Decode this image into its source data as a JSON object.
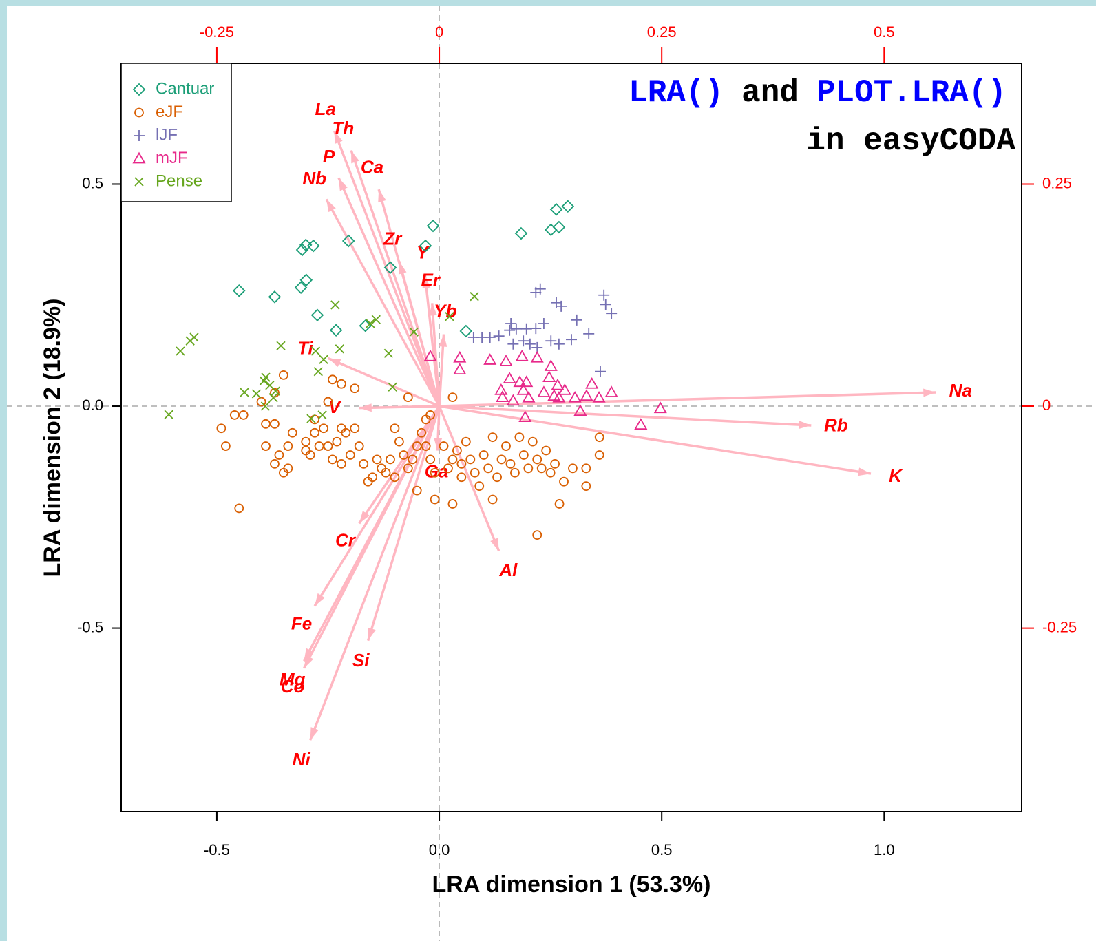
{
  "chart_data": {
    "type": "scatter",
    "title": [
      "LRA()",
      "and",
      "PLOT.LRA()"
    ],
    "subtitle": "in easyCODA",
    "xlabel": "LRA dimension 1 (53.3%)",
    "ylabel": "LRA dimension 2 (18.9%)",
    "xlim": [
      -0.715,
      1.309
    ],
    "ylim": [
      -0.913,
      0.772
    ],
    "xticks": [
      -0.5,
      {
        "value": 0,
        "label": "0.0"
      },
      0.5,
      {
        "value": 1,
        "label": "1.0"
      }
    ],
    "yticks": [
      -0.5,
      {
        "value": 0,
        "label": "0.0"
      },
      0.5
    ],
    "x2lim": [
      -0.3575,
      0.6545
    ],
    "y2lim": [
      -0.4565,
      0.386
    ],
    "x2ticks": [
      -0.25,
      0,
      0.25,
      0.5
    ],
    "y2ticks": [
      -0.25,
      0,
      0.25
    ],
    "second_axis_color": "#ff0000",
    "series": [
      {
        "name": "Cantuar",
        "color": "#1b9e77",
        "marker": "diamond",
        "x": [
          -0.45,
          -0.37,
          -0.311,
          -0.299,
          -0.308,
          -0.3,
          -0.283,
          -0.274,
          -0.232,
          -0.204,
          -0.166,
          -0.11,
          -0.031,
          -0.014,
          0.06,
          0.184,
          0.251,
          0.269,
          0.263,
          0.289
        ],
        "y": [
          0.26,
          0.246,
          0.267,
          0.284,
          0.352,
          0.363,
          0.361,
          0.205,
          0.171,
          0.372,
          0.181,
          0.312,
          0.361,
          0.406,
          0.169,
          0.389,
          0.397,
          0.403,
          0.443,
          0.45
        ]
      },
      {
        "name": "eJF",
        "color": "#d95f02",
        "marker": "circle",
        "x": [
          -0.49,
          -0.48,
          -0.46,
          -0.44,
          -0.45,
          -0.39,
          -0.37,
          -0.37,
          -0.36,
          -0.35,
          -0.34,
          -0.33,
          -0.3,
          -0.29,
          -0.28,
          -0.27,
          -0.26,
          -0.25,
          -0.24,
          -0.23,
          -0.22,
          -0.21,
          -0.19,
          -0.18,
          -0.17,
          -0.15,
          -0.14,
          -0.13,
          -0.12,
          -0.11,
          -0.1,
          -0.09,
          -0.08,
          -0.07,
          -0.06,
          -0.05,
          -0.05,
          -0.04,
          -0.03,
          -0.03,
          -0.02,
          -0.02,
          -0.01,
          -0.01,
          0.01,
          0.02,
          0.03,
          0.03,
          0.04,
          0.05,
          0.05,
          0.06,
          0.07,
          0.08,
          0.09,
          0.1,
          0.11,
          0.12,
          0.12,
          0.13,
          0.14,
          0.15,
          0.16,
          0.17,
          0.18,
          0.19,
          0.2,
          0.21,
          0.22,
          0.22,
          0.23,
          0.24,
          0.25,
          0.26,
          0.27,
          0.28,
          0.3,
          0.33,
          0.33,
          0.36,
          0.36,
          -0.34,
          -0.3,
          -0.28,
          -0.22,
          -0.2,
          -0.16,
          -0.1,
          0.03,
          -0.24,
          -0.22,
          -0.35,
          -0.19,
          -0.07,
          -0.25,
          -0.39,
          -0.4,
          -0.37
        ],
        "y": [
          -0.05,
          -0.09,
          -0.02,
          -0.02,
          -0.23,
          -0.04,
          -0.04,
          -0.13,
          -0.11,
          -0.15,
          -0.09,
          -0.06,
          -0.08,
          -0.11,
          -0.06,
          -0.09,
          -0.05,
          -0.09,
          -0.12,
          -0.08,
          -0.05,
          -0.06,
          -0.05,
          -0.09,
          -0.13,
          -0.16,
          -0.12,
          -0.14,
          -0.15,
          -0.12,
          -0.16,
          -0.08,
          -0.11,
          -0.14,
          -0.12,
          -0.09,
          -0.19,
          -0.06,
          -0.03,
          -0.09,
          -0.02,
          -0.12,
          -0.15,
          -0.21,
          -0.09,
          -0.14,
          -0.12,
          -0.22,
          -0.1,
          -0.13,
          -0.16,
          -0.08,
          -0.12,
          -0.15,
          -0.18,
          -0.11,
          -0.14,
          -0.07,
          -0.21,
          -0.16,
          -0.12,
          -0.09,
          -0.13,
          -0.15,
          -0.07,
          -0.11,
          -0.14,
          -0.08,
          -0.12,
          -0.29,
          -0.14,
          -0.1,
          -0.15,
          -0.13,
          -0.22,
          -0.17,
          -0.14,
          -0.14,
          -0.18,
          -0.07,
          -0.11,
          -0.14,
          -0.1,
          -0.03,
          -0.13,
          -0.11,
          -0.17,
          -0.05,
          0.02,
          0.06,
          0.05,
          0.07,
          0.04,
          0.02,
          0.01,
          -0.09,
          0.01,
          0.03
        ]
      },
      {
        "name": "lJF",
        "color": "#7570b3",
        "marker": "plus",
        "x": [
          0.077,
          0.096,
          0.114,
          0.134,
          0.158,
          0.161,
          0.173,
          0.196,
          0.217,
          0.235,
          0.166,
          0.189,
          0.204,
          0.22,
          0.251,
          0.269,
          0.297,
          0.336,
          0.309,
          0.274,
          0.263,
          0.217,
          0.227,
          0.37,
          0.374,
          0.387,
          0.362
        ],
        "y": [
          0.155,
          0.155,
          0.155,
          0.158,
          0.171,
          0.186,
          0.174,
          0.174,
          0.175,
          0.186,
          0.14,
          0.147,
          0.14,
          0.132,
          0.147,
          0.14,
          0.15,
          0.163,
          0.194,
          0.225,
          0.233,
          0.256,
          0.264,
          0.25,
          0.229,
          0.209,
          0.078
        ]
      },
      {
        "name": "mJF",
        "color": "#e7298a",
        "marker": "triangle",
        "x": [
          -0.02,
          0.046,
          0.046,
          0.114,
          0.15,
          0.186,
          0.22,
          0.251,
          0.158,
          0.181,
          0.196,
          0.247,
          0.266,
          0.139,
          0.189,
          0.235,
          0.258,
          0.142,
          0.166,
          0.201,
          0.269,
          0.305,
          0.331,
          0.343,
          0.359,
          0.387,
          0.282,
          0.193,
          0.317,
          0.453,
          0.497
        ],
        "y": [
          0.112,
          0.109,
          0.082,
          0.104,
          0.101,
          0.112,
          0.109,
          0.09,
          0.062,
          0.054,
          0.054,
          0.065,
          0.047,
          0.036,
          0.036,
          0.031,
          0.023,
          0.02,
          0.012,
          0.019,
          0.019,
          0.019,
          0.023,
          0.05,
          0.019,
          0.031,
          0.036,
          -0.025,
          -0.011,
          -0.042,
          -0.005
        ]
      },
      {
        "name": "Pense",
        "color": "#66a61e",
        "marker": "cross",
        "x": [
          -0.608,
          -0.582,
          -0.56,
          -0.551,
          -0.438,
          -0.411,
          -0.394,
          -0.39,
          -0.381,
          -0.368,
          -0.373,
          -0.391,
          -0.356,
          -0.278,
          -0.272,
          -0.26,
          -0.234,
          -0.224,
          -0.142,
          -0.155,
          -0.114,
          -0.105,
          -0.057,
          0.023,
          0.079,
          -0.288,
          -0.263
        ],
        "y": [
          -0.019,
          0.124,
          0.147,
          0.155,
          0.031,
          0.028,
          0.057,
          0.065,
          0.047,
          0.034,
          0.019,
          0.0,
          0.136,
          0.124,
          0.078,
          0.105,
          0.228,
          0.129,
          0.195,
          0.186,
          0.119,
          0.043,
          0.167,
          0.202,
          0.247,
          -0.028,
          -0.02
        ]
      }
    ],
    "arrows": {
      "color": "#ffb6c1",
      "label_color": "#ff0000",
      "labels": [
        "Na",
        "Rb",
        "K",
        "La",
        "Th",
        "P",
        "Ca",
        "Nb",
        "Zr",
        "Y",
        "Er",
        "Yb",
        "Ti",
        "V",
        "Ga",
        "Al",
        "Cr",
        "Fe",
        "Si",
        "Mg",
        "Co",
        "Ni"
      ],
      "x": [
        0.558,
        0.418,
        0.485,
        -0.118,
        -0.099,
        -0.113,
        -0.068,
        -0.127,
        -0.045,
        -0.016,
        -0.008,
        0.005,
        -0.125,
        -0.09,
        -0.002,
        0.067,
        -0.09,
        -0.14,
        -0.08,
        -0.152,
        -0.152,
        -0.145
      ],
      "y": [
        0.0155,
        -0.0217,
        -0.076,
        0.31,
        0.288,
        0.257,
        0.244,
        0.233,
        0.163,
        0.147,
        0.116,
        0.081,
        0.054,
        -0.002,
        -0.05,
        -0.163,
        -0.132,
        -0.225,
        -0.264,
        -0.287,
        -0.295,
        -0.376
      ]
    }
  }
}
